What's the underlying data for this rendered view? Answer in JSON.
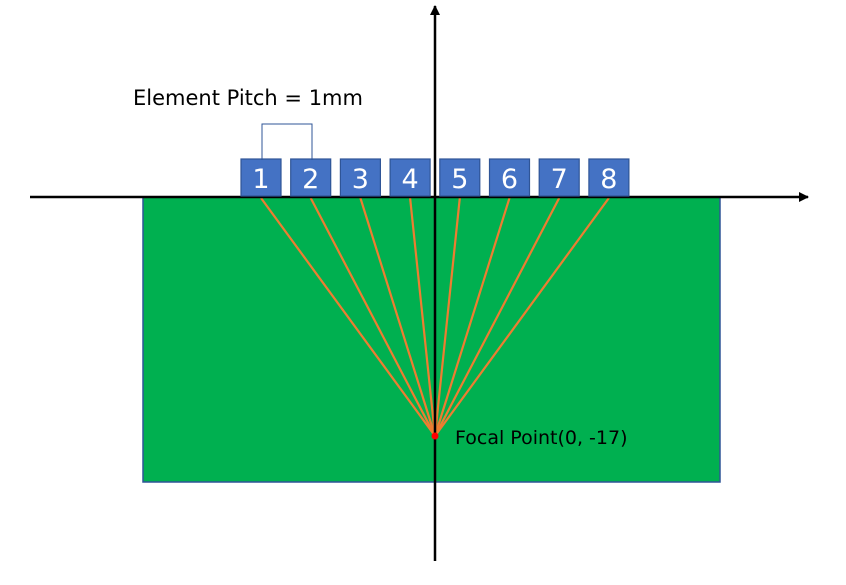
{
  "labels": {
    "pitch": "Element Pitch = 1mm",
    "focal_point": "Focal Point(0, -17)"
  },
  "elements": [
    "1",
    "2",
    "3",
    "4",
    "5",
    "6",
    "7",
    "8"
  ],
  "colors": {
    "medium": "#00B050",
    "medium_border": "#2F5597",
    "element_fill": "#4472C4",
    "element_border": "#2F5597",
    "ray": "#ED7D31",
    "focal_point": "#FF0000",
    "axis": "#000000",
    "bracket": "#2F5597"
  }
}
